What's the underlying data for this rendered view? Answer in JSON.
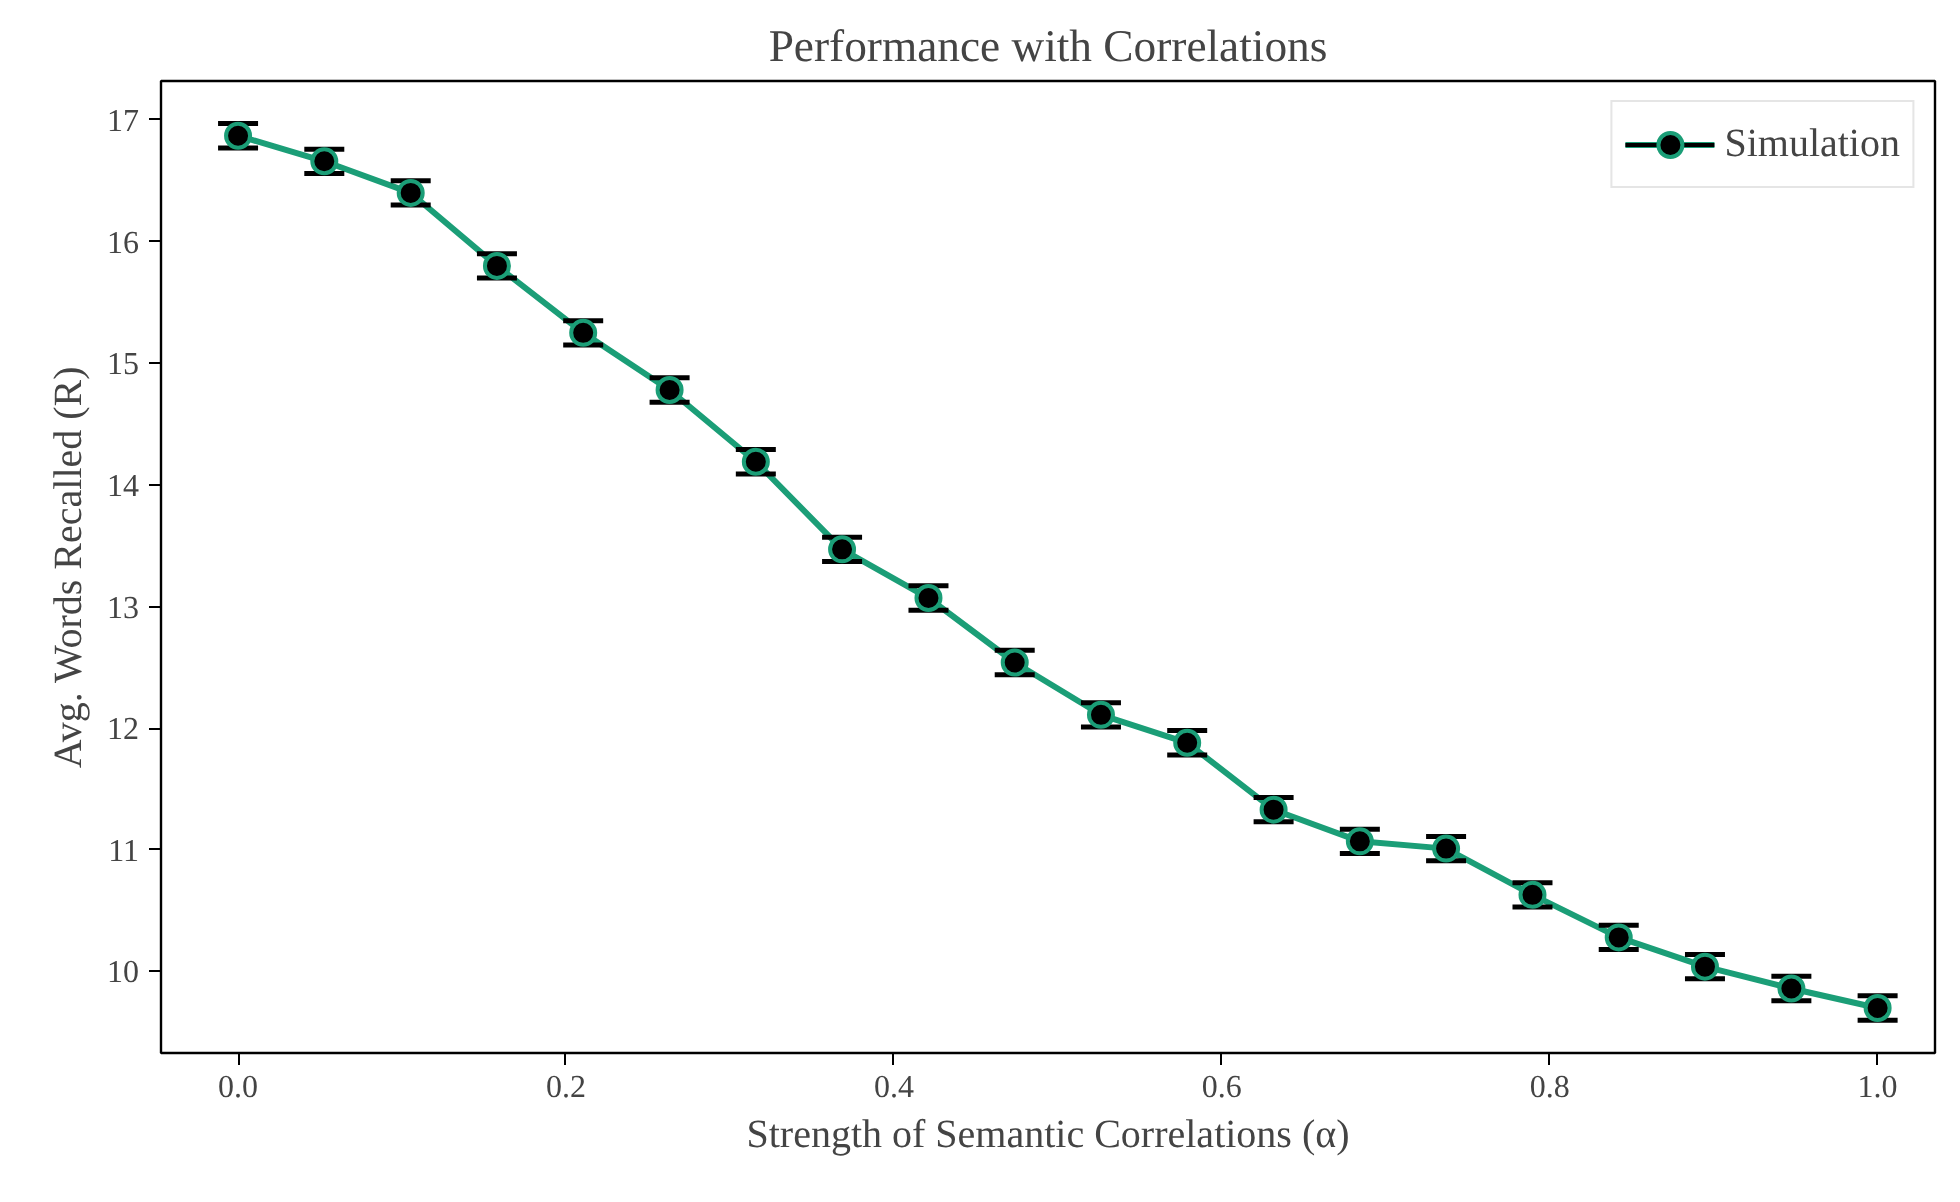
{
  "chart_data": {
    "type": "line",
    "title": "Performance with Correlations",
    "xlabel": "Strength of Semantic Correlations (α)",
    "ylabel": "Avg. Words Recalled (R)",
    "x": [
      0.0,
      0.0526,
      0.1053,
      0.1579,
      0.2105,
      0.2632,
      0.3158,
      0.3684,
      0.4211,
      0.4737,
      0.5263,
      0.5789,
      0.6316,
      0.6842,
      0.7368,
      0.7895,
      0.8421,
      0.8947,
      0.9474,
      1.0
    ],
    "series": [
      {
        "name": "Simulation",
        "color": "#1b9e77",
        "values": [
          16.87,
          16.66,
          16.4,
          15.8,
          15.25,
          14.78,
          14.19,
          13.47,
          13.07,
          12.54,
          12.11,
          11.88,
          11.33,
          11.07,
          11.01,
          10.63,
          10.28,
          10.04,
          9.86,
          9.7
        ],
        "errors": [
          0.1,
          0.1,
          0.1,
          0.1,
          0.1,
          0.1,
          0.1,
          0.1,
          0.1,
          0.1,
          0.1,
          0.1,
          0.1,
          0.1,
          0.1,
          0.1,
          0.1,
          0.1,
          0.1,
          0.1
        ]
      }
    ],
    "xlim": [
      -0.047,
      1.035
    ],
    "ylim": [
      9.33,
      17.32
    ],
    "xticks": [
      {
        "value": 0,
        "label": "0.0"
      },
      0.2,
      0.4,
      0.6,
      0.8,
      {
        "value": 1,
        "label": "1.0"
      }
    ],
    "yticks": [
      10,
      11,
      12,
      13,
      14,
      15,
      16,
      17
    ],
    "marker": "circle",
    "line_style": "solid",
    "grid": false,
    "legend": "top right"
  }
}
